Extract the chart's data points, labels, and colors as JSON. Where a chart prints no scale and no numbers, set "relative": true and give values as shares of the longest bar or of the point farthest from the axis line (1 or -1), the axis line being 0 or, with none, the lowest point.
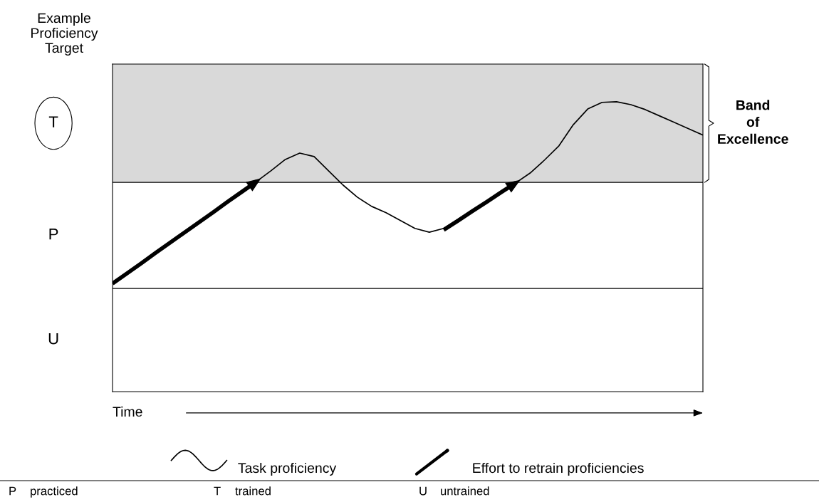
{
  "chart_data": {
    "type": "line",
    "relative": true,
    "ylabel": "Example Proficiency Target",
    "categories": [
      null,
      null,
      null,
      null,
      null,
      null,
      null,
      null,
      null,
      null,
      null,
      null,
      null,
      null,
      null,
      null,
      null,
      null,
      null,
      null,
      null,
      null,
      null,
      null,
      null,
      null,
      null,
      null,
      null,
      null,
      null,
      null,
      null,
      null,
      null,
      null,
      null,
      null,
      null,
      null,
      null,
      null
    ],
    "series": [
      {
        "name": "Task proficiency",
        "color": "#000000",
        "values": [
          0.376,
          0.41,
          0.445,
          0.482,
          0.516,
          0.553,
          0.587,
          0.622,
          0.658,
          0.693,
          0.725,
          0.762,
          0.801,
          0.823,
          0.811,
          0.762,
          0.713,
          0.671,
          0.639,
          0.617,
          0.59,
          0.563,
          0.55,
          0.563,
          0.595,
          0.627,
          0.658,
          0.69,
          0.72,
          0.754,
          0.799,
          0.848,
          0.921,
          0.975,
          0.998,
          1.0,
          0.99,
          0.973,
          0.951,
          0.929,
          0.907,
          0.885
        ]
      },
      {
        "name": "Effort to retrain proficiencies",
        "color": "#000000",
        "values": [
          0.373,
          0.408,
          0.443,
          0.479,
          0.514,
          0.549,
          0.584,
          0.619,
          0.655,
          0.69,
          0.725,
          null,
          null,
          null,
          null,
          null,
          null,
          null,
          null,
          null,
          null,
          null,
          null,
          0.558,
          0.59,
          0.623,
          0.655,
          0.688,
          0.72,
          null,
          null,
          null,
          null,
          null,
          null,
          null,
          null,
          null,
          null,
          null,
          null,
          null
        ]
      }
    ],
    "bands": [
      {
        "axis": "y",
        "from": 0.722,
        "to": 1.13,
        "label": "Band of Excellence",
        "color": "#d9d9d9"
      }
    ],
    "ref_lines": [
      {
        "axis": "y",
        "value": 0.356
      },
      {
        "axis": "y",
        "value": 0.722
      }
    ],
    "annotations": [
      "T",
      "P",
      "U",
      "Time",
      "P",
      "practiced",
      "T",
      "trained",
      "U",
      "untrained"
    ],
    "legend": "bottom"
  }
}
